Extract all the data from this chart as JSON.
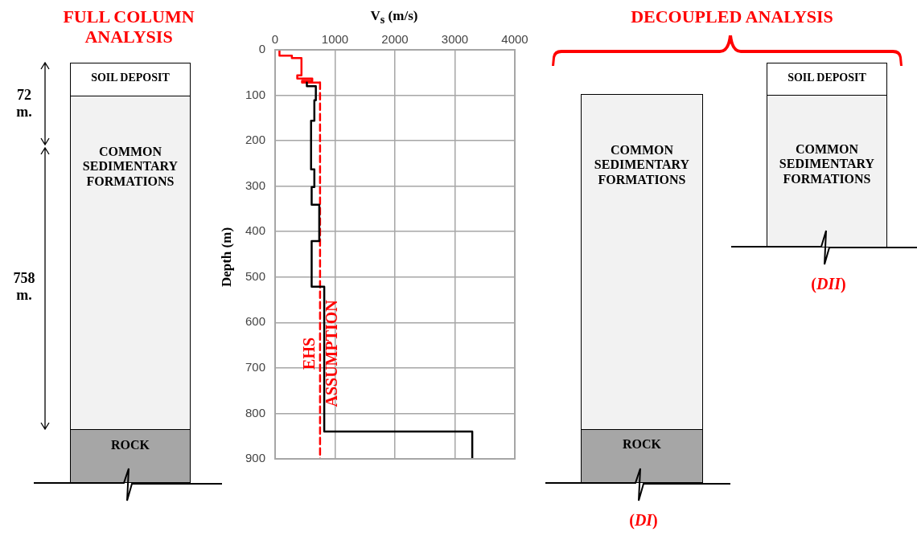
{
  "chart_data": {
    "type": "line",
    "xlabel": "V$_{s}$ (m/s)",
    "ylabel": "Depth  (m)",
    "xlim": [
      0,
      4000
    ],
    "xticks": [
      0,
      1000,
      2000,
      3000,
      4000
    ],
    "ylim": [
      900,
      0
    ],
    "yticks": [
      0,
      100,
      200,
      300,
      400,
      500,
      600,
      700,
      800,
      900
    ],
    "grid": true,
    "legend": false,
    "marker": "none",
    "series": [
      {
        "color": "#000000",
        "line_style": "solid",
        "x": [
          530,
          530,
          680,
          680,
          655,
          655,
          600,
          600,
          655,
          655,
          610,
          610,
          737,
          737,
          610,
          610,
          820,
          820,
          3290,
          3290
        ],
        "values": [
          72,
          80,
          80,
          111,
          111,
          156,
          156,
          263,
          263,
          302,
          302,
          341,
          341,
          421,
          421,
          521,
          521,
          840,
          840,
          900
        ]
      },
      {
        "color": "#ff0000",
        "line_style": "solid",
        "x": [
          73,
          73,
          280,
          280,
          440,
          440,
          370,
          370,
          620,
          620,
          450,
          450,
          750
        ],
        "values": [
          0,
          13,
          13,
          18,
          18,
          56,
          56,
          63,
          63,
          68,
          68,
          72,
          72
        ]
      },
      {
        "name": "EHS ASSUMPTION",
        "color": "#ff0000",
        "line_style": "dashed",
        "x": [
          750,
          750
        ],
        "values": [
          72,
          900
        ]
      }
    ],
    "annotations": [
      "FULL COLUMN ANALYSIS",
      "72 m.",
      "758 m.",
      "SOIL DEPOSIT",
      "COMMON SEDIMENTARY FORMATIONS",
      "ROCK",
      "DECOUPLED ANALYSIS",
      "COMMON SEDIMENTARY FORMATIONS",
      "ROCK",
      "(DI)",
      "SOIL DEPOSIT",
      "COMMON SEDIMENTARY FORMATIONS",
      "(DII)"
    ]
  }
}
